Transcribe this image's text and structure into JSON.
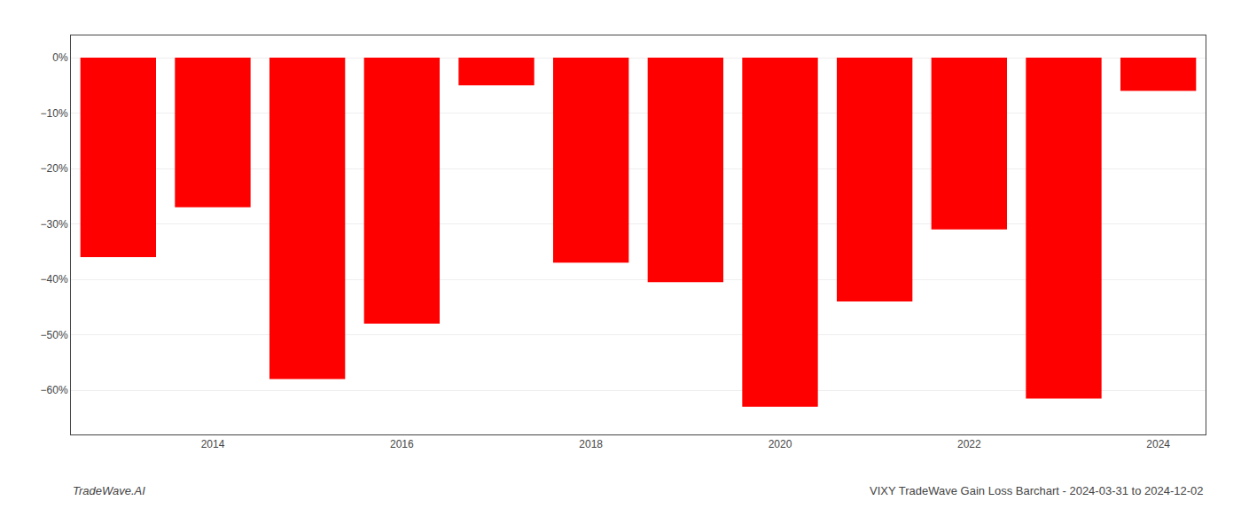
{
  "chart_data": {
    "type": "bar",
    "categories": [
      null,
      "2014",
      null,
      "2016",
      null,
      "2018",
      null,
      "2020",
      null,
      "2022",
      null,
      "2024"
    ],
    "values": [
      -36.0,
      -27.0,
      -58.0,
      -48.0,
      -5.0,
      -37.0,
      -40.5,
      -63.0,
      -44.0,
      -31.0,
      -61.5,
      -6.0
    ],
    "color": "#ff0000",
    "ylim": [
      -68,
      4
    ],
    "yticks": [
      {
        "value": 0,
        "label": "0%"
      },
      {
        "value": -10,
        "label": "−10%"
      },
      {
        "value": -20,
        "label": "−20%"
      },
      {
        "value": -30,
        "label": "−30%"
      },
      {
        "value": -40,
        "label": "−40%"
      },
      {
        "value": -50,
        "label": "−50%"
      },
      {
        "value": -60,
        "label": "−60%"
      }
    ],
    "grid": true,
    "annotations": [
      "TradeWave.AI",
      "VIXY TradeWave Gain Loss Barchart - 2024-03-31 to 2024-12-02"
    ]
  }
}
